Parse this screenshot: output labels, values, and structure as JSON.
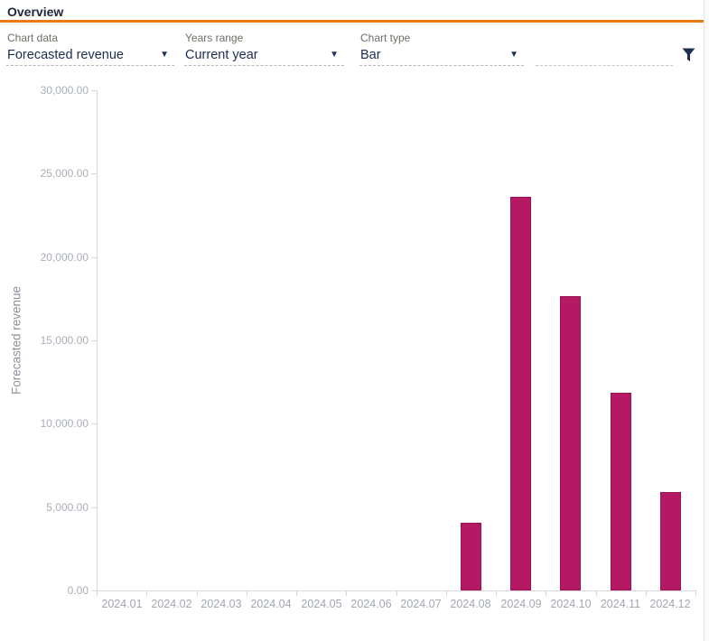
{
  "header": {
    "title": "Overview"
  },
  "toolbar": {
    "fields": [
      {
        "label": "Chart data",
        "value": "Forecasted revenue",
        "type": "dropdown"
      },
      {
        "label": "Years range",
        "value": "Current year",
        "type": "dropdown"
      },
      {
        "label": "Chart type",
        "value": "Bar",
        "type": "dropdown"
      },
      {
        "label": "",
        "value": "",
        "type": "text"
      }
    ],
    "filter_icon": "funnel-icon"
  },
  "colors": {
    "accent_orange": "#e87b12",
    "bar_fill": "#b51963",
    "bar_border": "#9a1454",
    "value_text": "#1d2d4f",
    "axis_text": "#a9aeb7",
    "axis_line": "#d6d8dc"
  },
  "chart_data": {
    "type": "bar",
    "title": "",
    "categories": [
      "2024.01",
      "2024.02",
      "2024.03",
      "2024.04",
      "2024.05",
      "2024.06",
      "2024.07",
      "2024.08",
      "2024.09",
      "2024.10",
      "2024.11",
      "2024.12"
    ],
    "values": [
      0,
      0,
      0,
      0,
      0,
      0,
      0,
      4050,
      23600,
      17650,
      11850,
      5900
    ],
    "xlabel": "",
    "ylabel": "Forecasted revenue",
    "ylim": [
      0,
      30000
    ],
    "ytick_step": 5000,
    "ytick_format": "#,##0.00",
    "grid": false,
    "legend": "none"
  }
}
